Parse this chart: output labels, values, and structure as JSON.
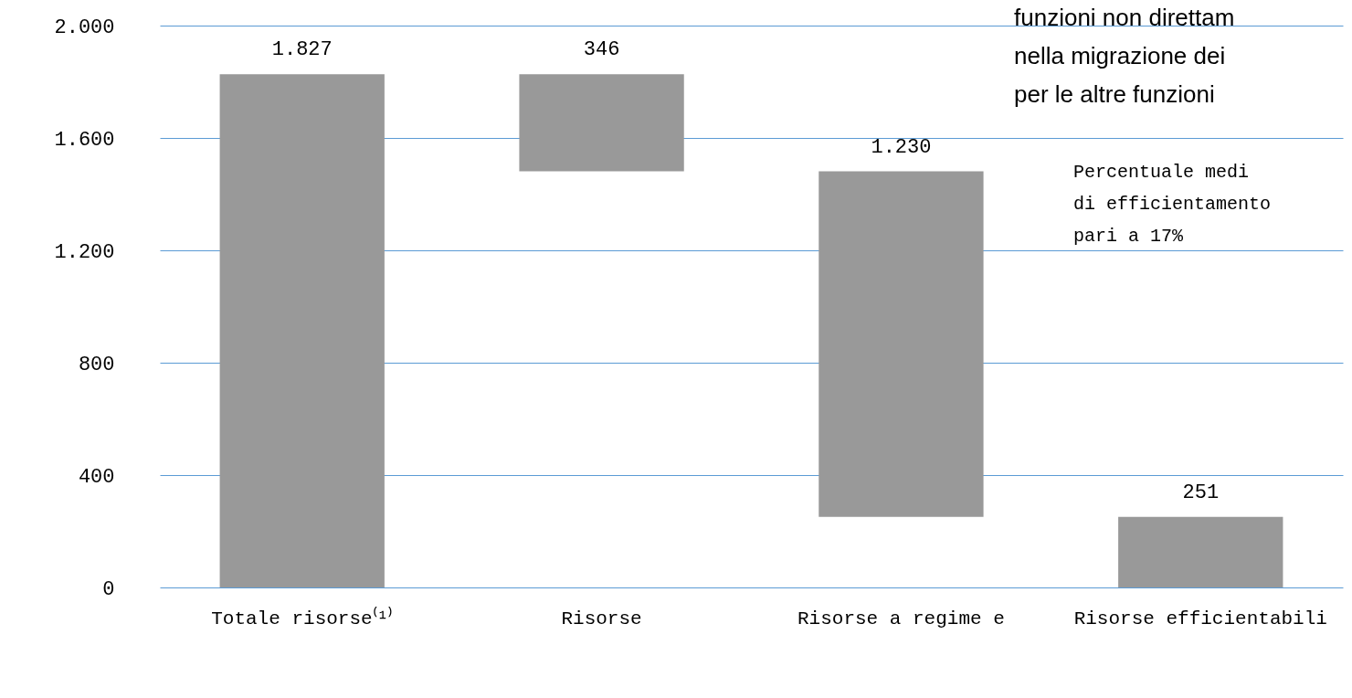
{
  "chart_data": {
    "type": "bar",
    "categories": [
      "Totale risorse⁽¹⁾",
      "Risorse",
      "Risorse a regime e",
      "Risorse efficientabili"
    ],
    "values": [
      1827,
      346,
      1230,
      251
    ],
    "base": [
      0,
      1481,
      251,
      0
    ],
    "value_labels": [
      "1.827",
      "346",
      "1.230",
      "251"
    ],
    "colors": [
      "#999999",
      "#999999",
      "#999999",
      "#999999"
    ],
    "ylim": [
      0,
      2000
    ],
    "yticks": [
      {
        "value": 0,
        "label": "0"
      },
      {
        "value": 400,
        "label": "400"
      },
      {
        "value": 800,
        "label": "800"
      },
      {
        "value": 1200,
        "label": "1.200"
      },
      {
        "value": 1600,
        "label": "1.600"
      },
      {
        "value": 2000,
        "label": "2.000"
      }
    ],
    "grid": "y",
    "annotations": [
      "funzioni non direttam",
      "nella migrazione dei",
      "per le altre funzioni",
      "Percentuale medi",
      "di efficientamento",
      "pari a 17%"
    ]
  }
}
